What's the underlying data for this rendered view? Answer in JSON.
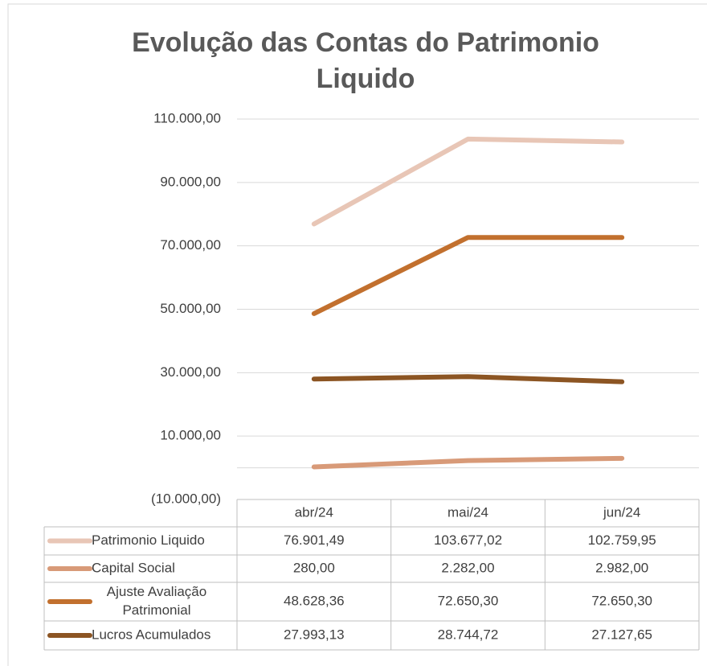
{
  "chart_data": {
    "type": "line",
    "title": [
      "Evolução das  Contas do Patrimonio",
      "Liquido"
    ],
    "categories": [
      "abr/24",
      "mai/24",
      "jun/24"
    ],
    "series": [
      {
        "name": "Patrimonio Liquido",
        "color": "#e8c6b6",
        "values": [
          76901.49,
          103677.02,
          102759.95
        ],
        "value_labels": [
          "76.901,49",
          "103.677,02",
          "102.759,95"
        ]
      },
      {
        "name": "Capital Social",
        "color": "#d89a78",
        "values": [
          280,
          2282,
          2982
        ],
        "value_labels": [
          "280,00",
          "2.282,00",
          "2.982,00"
        ]
      },
      {
        "name": "Ajuste Avaliação Patrimonial",
        "color": "#c2702e",
        "values": [
          48628.36,
          72650.3,
          72650.3
        ],
        "value_labels": [
          "48.628,36",
          "72.650,30",
          "72.650,30"
        ]
      },
      {
        "name": "Lucros Acumulados",
        "color": "#8c5523",
        "values": [
          27993.13,
          28744.72,
          27127.65
        ],
        "value_labels": [
          "27.993,13",
          "28.744,72",
          "27.127,65"
        ]
      }
    ],
    "ylim": [
      -10000,
      110000
    ],
    "yticks": [
      {
        "value": -10000,
        "label": "(10.000,00)"
      },
      {
        "value": 10000,
        "label": "10.000,00"
      },
      {
        "value": 30000,
        "label": "30.000,00"
      },
      {
        "value": 50000,
        "label": "50.000,00"
      },
      {
        "value": 70000,
        "label": "70.000,00"
      },
      {
        "value": 90000,
        "label": "90.000,00"
      },
      {
        "value": 110000,
        "label": "110.000,00"
      }
    ],
    "grid": true
  }
}
